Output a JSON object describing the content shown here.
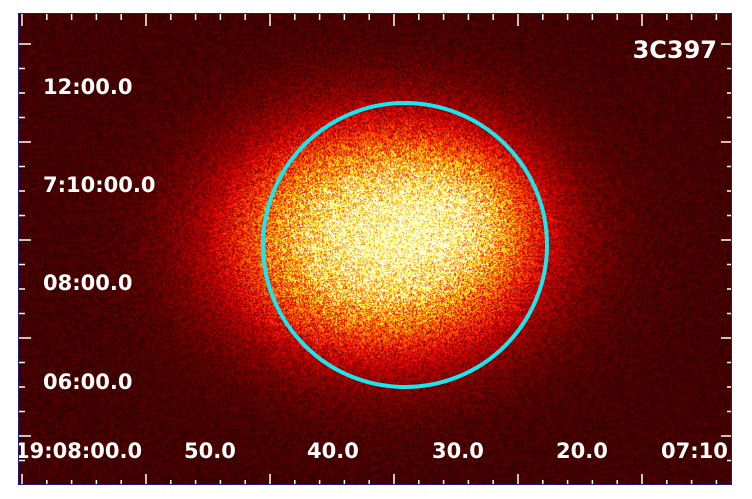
{
  "image": {
    "object_name": "3C397",
    "colormap": "hot",
    "colors": {
      "background": "#2a0600",
      "region": "#19e6ee",
      "frame": "#1c1c7a",
      "label": "#ffffff"
    }
  },
  "axes": {
    "dec_labels": [
      "12:00.0",
      "7:10:00.0",
      "08:00.0",
      "06:00.0"
    ],
    "ra_labels": [
      "19:08:00.0",
      "50.0",
      "40.0",
      "30.0",
      "20.0",
      "07:10"
    ]
  },
  "region": {
    "shape": "circle",
    "color": "#19e6ee"
  }
}
